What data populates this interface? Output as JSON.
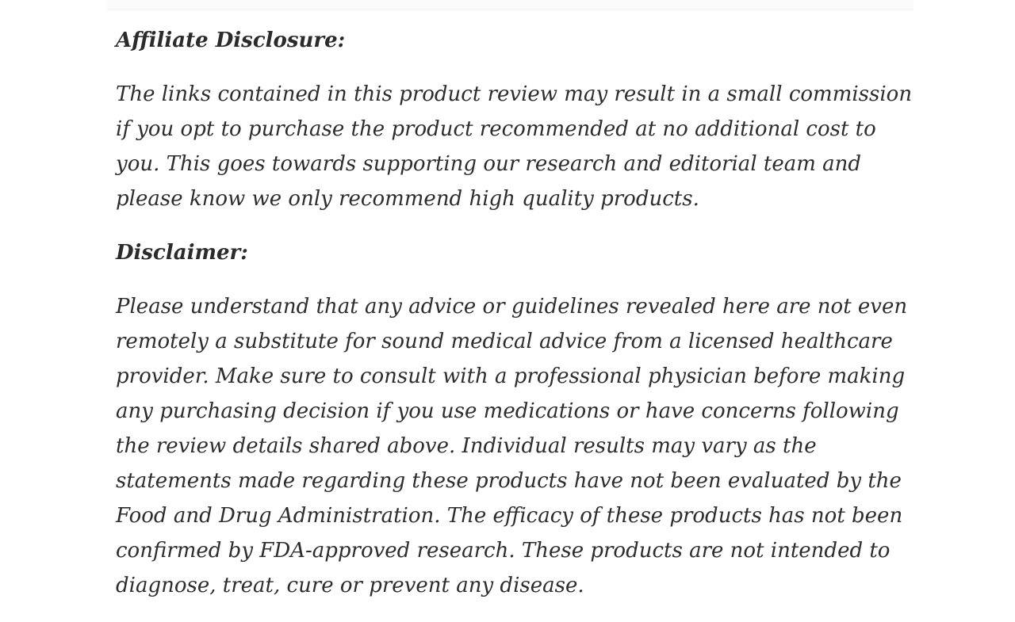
{
  "page": {
    "background_color": "#ffffff",
    "text_color": "#2d2d2d",
    "divider_color": "#fbfbfb"
  },
  "article": {
    "sections": [
      {
        "heading": "Affiliate Disclosure:",
        "body": "The links contained in this product review may result in a small commission if you opt to purchase the product recommended at no additional cost to you. This goes towards supporting our research and editorial team and please know we only recommend high quality products."
      },
      {
        "heading": "Disclaimer:",
        "body": "Please understand that any advice or guidelines revealed here are not even remotely a substitute for sound medical advice from a licensed healthcare provider. Make sure to consult with a professional physician before making any purchasing decision if you use medications or have concerns following the review details shared above. Individual results may vary as the statements made regarding these products have not been evaluated by the Food and Drug Administration. The efficacy of these products has not been confirmed by FDA-approved research. These products are not intended to diagnose, treat, cure or prevent any disease."
      }
    ]
  }
}
